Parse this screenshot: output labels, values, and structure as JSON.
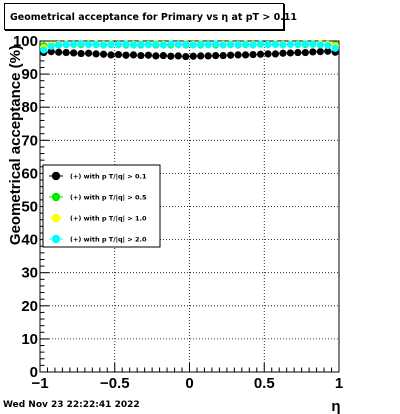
{
  "title": "Geometrical acceptance for Primary vs   η at pT > 0.11",
  "footer": "Wed Nov 23 22:22:41 2022",
  "chart_data": {
    "type": "scatter",
    "title": "Geometrical acceptance for Primary vs   η at pT > 0.11",
    "xlabel": "η",
    "ylabel": "Geometrical acceptance (%)",
    "xlim": [
      -1,
      1
    ],
    "ylim": [
      0,
      100
    ],
    "x_ticks": [
      -1,
      -0.5,
      0,
      0.5,
      1
    ],
    "x_tick_labels": [
      "−1",
      "−0.5",
      "0",
      "0.5",
      "1"
    ],
    "y_ticks": [
      0,
      10,
      20,
      30,
      40,
      50,
      60,
      70,
      80,
      90,
      100
    ],
    "y_tick_labels": [
      "0",
      "10",
      "20",
      "30",
      "40",
      "50",
      "60",
      "70",
      "80",
      "90",
      "100"
    ],
    "grid": true,
    "legend_position": "center-left",
    "x": [
      -0.975,
      -0.925,
      -0.875,
      -0.825,
      -0.775,
      -0.725,
      -0.675,
      -0.625,
      -0.575,
      -0.525,
      -0.475,
      -0.425,
      -0.375,
      -0.325,
      -0.275,
      -0.225,
      -0.175,
      -0.125,
      -0.075,
      -0.025,
      0.025,
      0.075,
      0.125,
      0.175,
      0.225,
      0.275,
      0.325,
      0.375,
      0.425,
      0.475,
      0.525,
      0.575,
      0.625,
      0.675,
      0.725,
      0.775,
      0.825,
      0.875,
      0.925,
      0.975
    ],
    "series": [
      {
        "name": "(+) with p T/|q| > 0.1",
        "color": "#000000",
        "values": [
          96.5,
          96.8,
          96.6,
          96.5,
          96.4,
          96.2,
          96.3,
          96.1,
          96.0,
          95.8,
          95.9,
          95.7,
          95.8,
          95.6,
          95.7,
          95.5,
          95.6,
          95.4,
          95.5,
          95.3,
          95.4,
          95.5,
          95.5,
          95.6,
          95.6,
          95.7,
          95.8,
          95.8,
          95.9,
          96.0,
          96.1,
          96.1,
          96.3,
          96.4,
          96.5,
          96.5,
          96.7,
          96.8,
          96.9,
          96.6
        ]
      },
      {
        "name": "(+) with p T/|q| > 0.5",
        "color": "#00ee00",
        "values": [
          98.6,
          98.9,
          98.8,
          98.9,
          99.0,
          98.9,
          99.0,
          98.9,
          98.8,
          98.9,
          98.9,
          98.8,
          98.9,
          98.8,
          98.9,
          98.8,
          98.9,
          98.8,
          98.9,
          98.8,
          98.9,
          98.8,
          98.9,
          98.8,
          98.9,
          98.9,
          98.8,
          98.9,
          98.9,
          99.0,
          98.9,
          99.0,
          98.9,
          99.0,
          99.0,
          98.9,
          99.1,
          99.0,
          99.0,
          98.8
        ]
      },
      {
        "name": "(+) with p T/|q| > 1.0",
        "color": "#ffff00",
        "values": [
          98.0,
          98.8,
          99.0,
          99.1,
          99.0,
          99.2,
          99.0,
          99.1,
          99.0,
          99.1,
          99.0,
          99.1,
          99.0,
          99.1,
          99.0,
          99.2,
          99.0,
          99.1,
          99.0,
          99.1,
          99.0,
          99.1,
          99.0,
          99.1,
          99.0,
          99.1,
          99.0,
          99.1,
          99.0,
          99.1,
          99.0,
          99.1,
          99.0,
          99.1,
          99.0,
          99.2,
          99.0,
          99.1,
          99.0,
          98.5
        ]
      },
      {
        "name": "(+) with p T/|q| > 2.0",
        "color": "#00ffff",
        "values": [
          97.3,
          98.4,
          98.8,
          99.0,
          98.9,
          99.2,
          98.9,
          99.0,
          98.8,
          99.0,
          98.9,
          99.1,
          98.8,
          99.0,
          98.9,
          99.0,
          98.8,
          99.1,
          98.9,
          99.0,
          98.8,
          99.0,
          98.9,
          99.1,
          98.8,
          99.0,
          98.9,
          99.0,
          98.8,
          99.1,
          98.9,
          99.0,
          98.8,
          99.0,
          98.9,
          99.1,
          99.0,
          98.8,
          98.6,
          97.8
        ]
      }
    ]
  }
}
